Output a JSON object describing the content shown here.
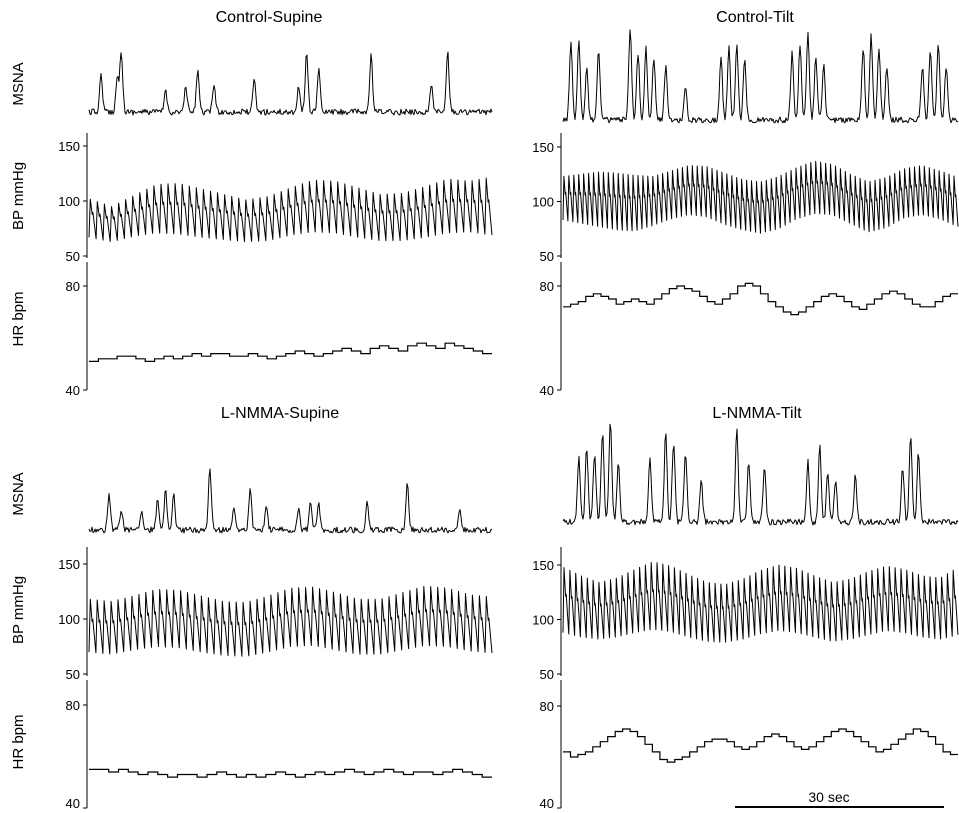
{
  "chart_data": [
    {
      "type": "line",
      "title": "Control-Supine",
      "msna": {
        "ylabel": "MSNA",
        "bursts": [
          [
            0.03,
            0.6
          ],
          [
            0.07,
            0.55
          ],
          [
            0.08,
            1.0
          ],
          [
            0.19,
            0.35
          ],
          [
            0.24,
            0.4
          ],
          [
            0.27,
            0.7
          ],
          [
            0.31,
            0.45
          ],
          [
            0.41,
            0.5
          ],
          [
            0.52,
            0.4
          ],
          [
            0.54,
            0.95
          ],
          [
            0.57,
            0.7
          ],
          [
            0.7,
            0.9
          ],
          [
            0.85,
            0.45
          ],
          [
            0.89,
            0.95
          ]
        ]
      },
      "bp": {
        "ylabel": "BP  mmHg",
        "ticks": [
          50,
          100,
          150
        ],
        "ylim": [
          50,
          150
        ],
        "beats": 57,
        "diastolic": [
          67,
          63,
          68,
          71,
          70,
          67,
          65,
          63,
          64,
          69,
          72,
          71,
          67,
          64,
          64,
          67,
          71,
          72,
          69
        ],
        "systolic": [
          102,
          95,
          105,
          115,
          116,
          111,
          106,
          101,
          104,
          112,
          119,
          118,
          112,
          106,
          107,
          113,
          120,
          118,
          122
        ]
      },
      "hr": {
        "ylabel": "HR  bpm",
        "ticks": [
          40,
          80
        ],
        "ylim": [
          40,
          80
        ],
        "steps": [
          51,
          52,
          52,
          53,
          53,
          52,
          51,
          52,
          53,
          52,
          53,
          54,
          53,
          54,
          54,
          53,
          53,
          54,
          53,
          52,
          53,
          54,
          55,
          54,
          53,
          54,
          55,
          56,
          55,
          54,
          56,
          57,
          56,
          55,
          57,
          58,
          57,
          56,
          58,
          57,
          56,
          55,
          54
        ]
      }
    },
    {
      "type": "line",
      "title": "Control-Tilt",
      "msna": {
        "ylabel": "MSNA",
        "bursts": [
          [
            0.02,
            0.85
          ],
          [
            0.04,
            0.9
          ],
          [
            0.06,
            0.6
          ],
          [
            0.09,
            0.8
          ],
          [
            0.17,
            1.0
          ],
          [
            0.19,
            0.75
          ],
          [
            0.21,
            0.8
          ],
          [
            0.23,
            0.7
          ],
          [
            0.26,
            0.6
          ],
          [
            0.31,
            0.35
          ],
          [
            0.4,
            0.7
          ],
          [
            0.42,
            0.8
          ],
          [
            0.44,
            0.85
          ],
          [
            0.46,
            0.7
          ],
          [
            0.58,
            0.75
          ],
          [
            0.6,
            0.85
          ],
          [
            0.62,
            0.95
          ],
          [
            0.64,
            0.7
          ],
          [
            0.66,
            0.6
          ],
          [
            0.76,
            0.8
          ],
          [
            0.78,
            0.95
          ],
          [
            0.8,
            0.8
          ],
          [
            0.82,
            0.6
          ],
          [
            0.91,
            0.6
          ],
          [
            0.93,
            0.8
          ],
          [
            0.95,
            0.85
          ],
          [
            0.97,
            0.6
          ]
        ]
      },
      "bp": {
        "ylabel": "",
        "ticks": [
          50,
          100,
          150
        ],
        "ylim": [
          50,
          150
        ],
        "beats": 80,
        "diastolic": [
          83,
          80,
          77,
          74,
          73,
          78,
          84,
          88,
          86,
          79,
          74,
          71,
          75,
          84,
          89,
          88,
          80,
          72,
          76,
          85,
          88,
          84,
          77
        ],
        "systolic": [
          123,
          125,
          127,
          126,
          124,
          123,
          128,
          133,
          132,
          126,
          120,
          118,
          123,
          131,
          137,
          134,
          125,
          118,
          122,
          130,
          133,
          128,
          122
        ]
      },
      "hr": {
        "ylabel": "",
        "ticks": [
          40,
          80
        ],
        "ylim": [
          40,
          80
        ],
        "steps": [
          72,
          73,
          74,
          76,
          77,
          76,
          75,
          73,
          74,
          75,
          74,
          73,
          75,
          77,
          79,
          80,
          79,
          78,
          76,
          74,
          73,
          75,
          77,
          80,
          81,
          80,
          77,
          74,
          72,
          70,
          69,
          70,
          72,
          74,
          76,
          77,
          76,
          74,
          72,
          71,
          73,
          75,
          77,
          78,
          77,
          75,
          73,
          72,
          72,
          74,
          76,
          77
        ]
      }
    },
    {
      "type": "line",
      "title": "L-NMMA-Supine",
      "msna": {
        "ylabel": "MSNA",
        "bursts": [
          [
            0.05,
            0.55
          ],
          [
            0.08,
            0.3
          ],
          [
            0.13,
            0.3
          ],
          [
            0.17,
            0.45
          ],
          [
            0.19,
            0.6
          ],
          [
            0.21,
            0.55
          ],
          [
            0.3,
            0.95
          ],
          [
            0.36,
            0.35
          ],
          [
            0.4,
            0.6
          ],
          [
            0.44,
            0.35
          ],
          [
            0.52,
            0.35
          ],
          [
            0.55,
            0.45
          ],
          [
            0.57,
            0.4
          ],
          [
            0.69,
            0.4
          ],
          [
            0.79,
            0.7
          ],
          [
            0.92,
            0.35
          ]
        ]
      },
      "bp": {
        "ylabel": "BP mmHg",
        "ticks": [
          50,
          100,
          150
        ],
        "ylim": [
          50,
          150
        ],
        "beats": 58,
        "diastolic": [
          70,
          68,
          72,
          75,
          74,
          70,
          67,
          66,
          70,
          75,
          76,
          72,
          68,
          68,
          72,
          76,
          75,
          71,
          69
        ],
        "systolic": [
          118,
          116,
          121,
          127,
          126,
          121,
          116,
          115,
          121,
          128,
          129,
          124,
          118,
          118,
          124,
          130,
          128,
          122,
          120
        ]
      },
      "hr": {
        "ylabel": "HR bpm",
        "ticks": [
          40,
          80
        ],
        "ylim": [
          40,
          80
        ],
        "steps": [
          55,
          55,
          54,
          55,
          54,
          53,
          54,
          53,
          52,
          53,
          53,
          52,
          53,
          54,
          53,
          52,
          53,
          52,
          53,
          54,
          53,
          52,
          53,
          54,
          53,
          54,
          55,
          54,
          53,
          54,
          55,
          54,
          53,
          54,
          54,
          53,
          54,
          55,
          54,
          53,
          52
        ]
      }
    },
    {
      "type": "line",
      "title": "L-NMMA-Tilt",
      "msna": {
        "ylabel": "",
        "bursts": [
          [
            0.04,
            0.65
          ],
          [
            0.06,
            0.75
          ],
          [
            0.08,
            0.7
          ],
          [
            0.1,
            0.9
          ],
          [
            0.12,
            1.0
          ],
          [
            0.14,
            0.6
          ],
          [
            0.22,
            0.65
          ],
          [
            0.26,
            0.9
          ],
          [
            0.28,
            0.8
          ],
          [
            0.31,
            0.7
          ],
          [
            0.35,
            0.4
          ],
          [
            0.44,
            0.95
          ],
          [
            0.47,
            0.6
          ],
          [
            0.51,
            0.55
          ],
          [
            0.62,
            0.6
          ],
          [
            0.65,
            0.75
          ],
          [
            0.67,
            0.5
          ],
          [
            0.69,
            0.4
          ],
          [
            0.74,
            0.45
          ],
          [
            0.86,
            0.55
          ],
          [
            0.88,
            0.85
          ],
          [
            0.9,
            0.7
          ]
        ]
      },
      "bp": {
        "ylabel": "",
        "ticks": [
          50,
          100,
          150
        ],
        "ylim": [
          50,
          150
        ],
        "beats": 68,
        "diastolic": [
          88,
          84,
          82,
          84,
          88,
          91,
          89,
          84,
          80,
          79,
          82,
          87,
          90,
          88,
          84,
          80,
          82,
          86,
          90,
          88,
          84,
          82,
          86
        ],
        "systolic": [
          148,
          140,
          134,
          138,
          146,
          153,
          149,
          141,
          134,
          132,
          137,
          145,
          150,
          147,
          140,
          134,
          137,
          144,
          149,
          146,
          140,
          138,
          148
        ]
      },
      "hr": {
        "ylabel": "",
        "ticks": [
          40,
          80
        ],
        "ylim": [
          40,
          80
        ],
        "steps": [
          62,
          60,
          61,
          62,
          64,
          66,
          68,
          70,
          71,
          70,
          68,
          65,
          62,
          59,
          58,
          59,
          60,
          62,
          64,
          66,
          67,
          67,
          66,
          64,
          63,
          64,
          66,
          68,
          69,
          68,
          66,
          64,
          63,
          64,
          66,
          68,
          70,
          71,
          70,
          68,
          66,
          64,
          62,
          63,
          65,
          67,
          69,
          71,
          70,
          68,
          65,
          62,
          61
        ]
      }
    }
  ],
  "scale_bar": {
    "label": "30  sec",
    "seconds": 30
  }
}
